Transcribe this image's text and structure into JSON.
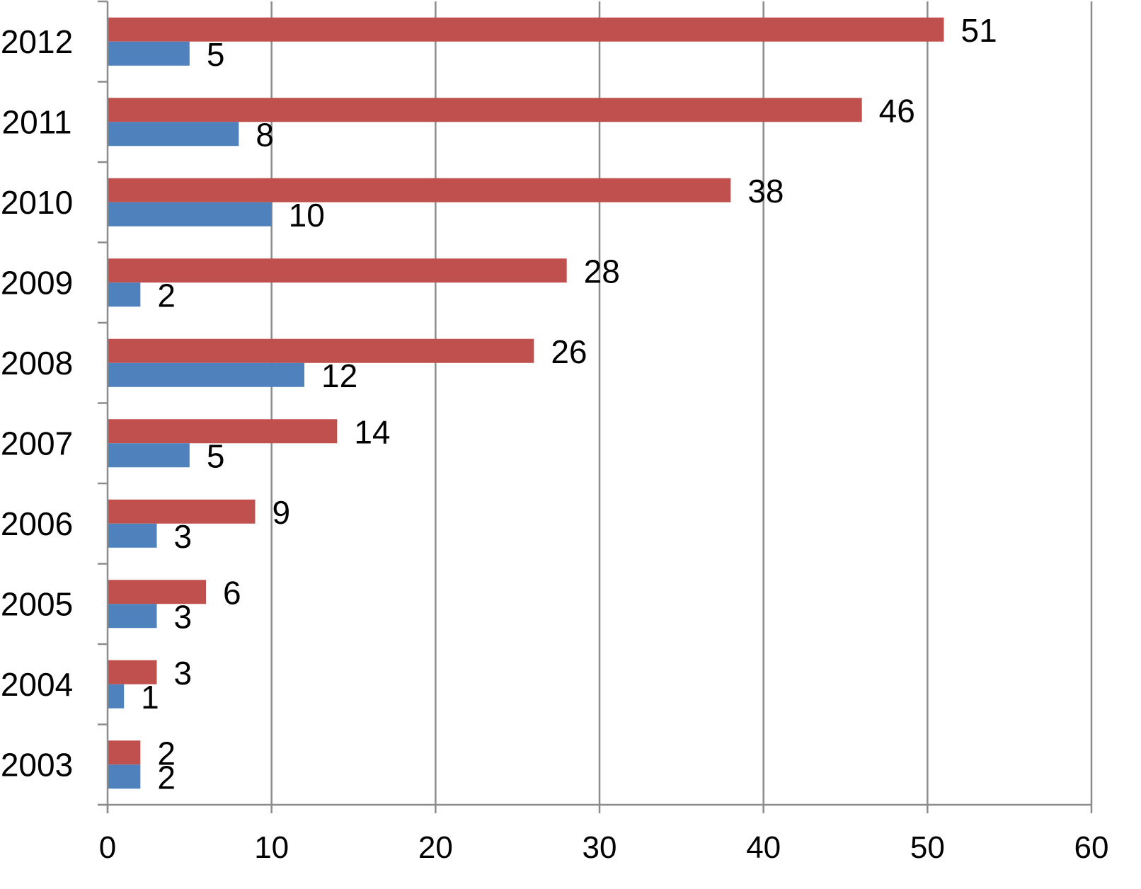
{
  "chart_data": {
    "type": "bar",
    "orientation": "horizontal",
    "title": "",
    "xlabel": "",
    "ylabel": "",
    "categories": [
      "2003",
      "2004",
      "2005",
      "2006",
      "2007",
      "2008",
      "2009",
      "2010",
      "2011",
      "2012"
    ],
    "series": [
      {
        "color": "#c0504d",
        "values": [
          2,
          3,
          6,
          9,
          14,
          26,
          28,
          38,
          46,
          51
        ]
      },
      {
        "color": "#4f81bd",
        "values": [
          2,
          1,
          3,
          3,
          5,
          12,
          2,
          10,
          8,
          5
        ]
      }
    ],
    "xlim": [
      0,
      60
    ],
    "x_ticks": [
      "0",
      "10",
      "20",
      "30",
      "40",
      "50",
      "60"
    ],
    "grid": "vertical",
    "legend": "none",
    "data_labels": true
  }
}
